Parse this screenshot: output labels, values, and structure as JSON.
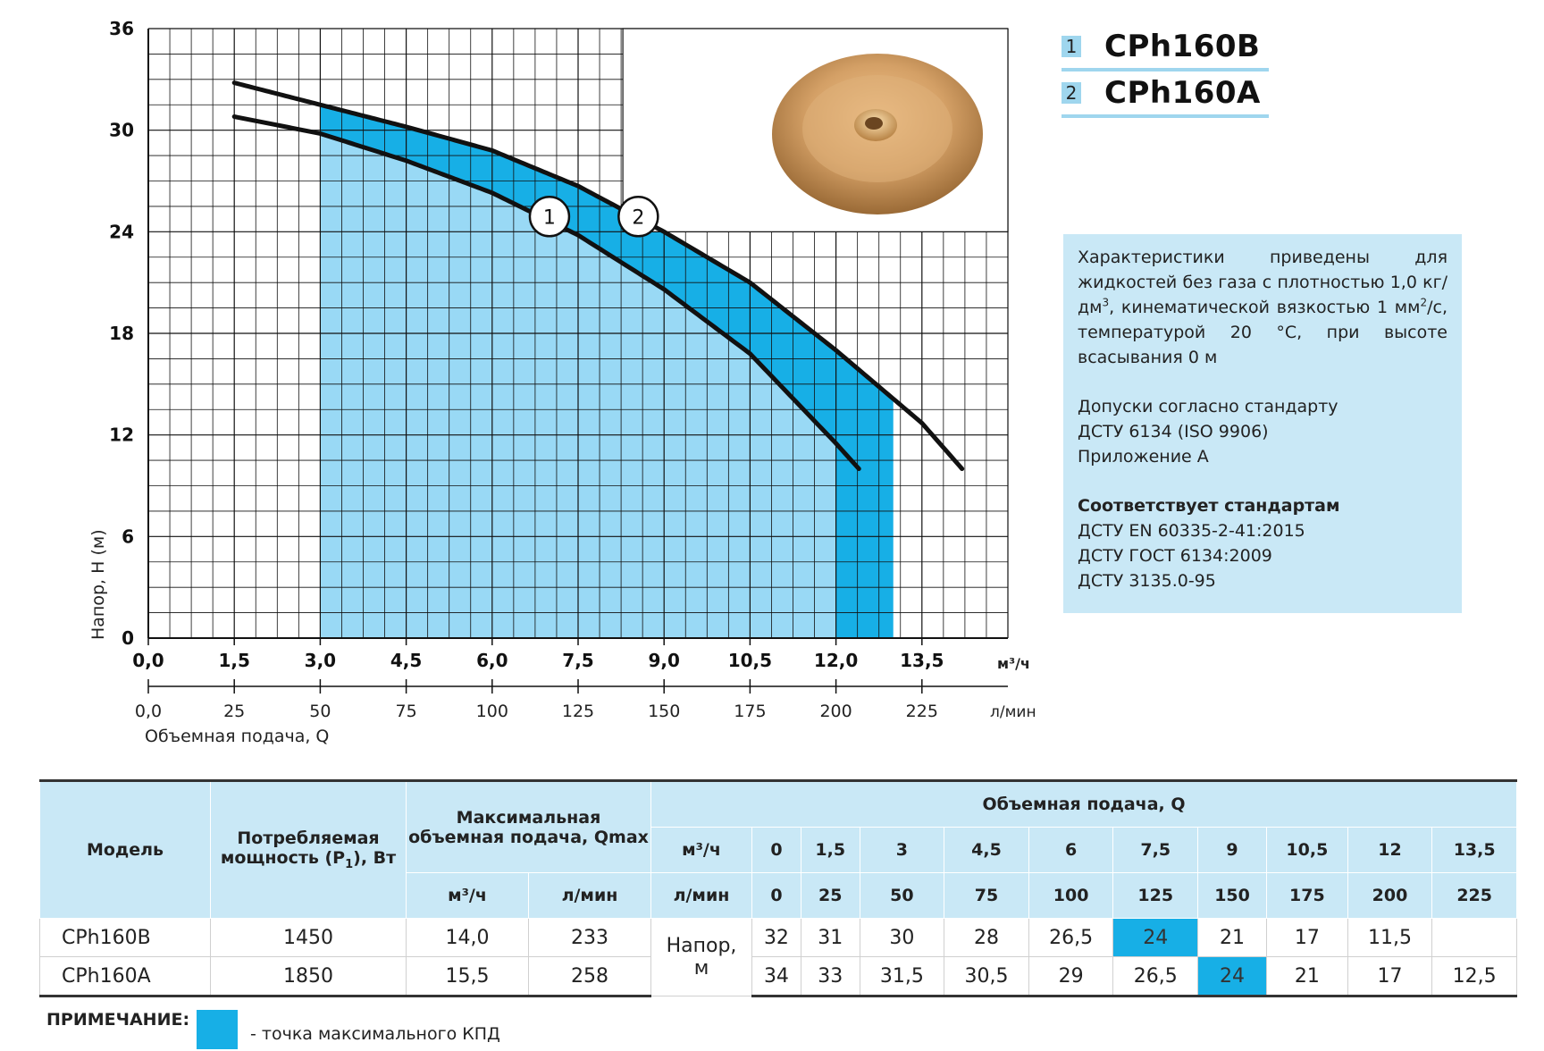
{
  "chart_data": {
    "type": "line",
    "xlabel": "Объемная подача, Q",
    "ylabel": "Напор, Н (м)",
    "x_unit_primary": "м³/ч",
    "x_unit_secondary": "л/мин",
    "xlim": [
      0,
      15
    ],
    "ylim": [
      0,
      36
    ],
    "x_ticks_primary": [
      "0,0",
      "1,5",
      "3,0",
      "4,5",
      "6,0",
      "7,5",
      "9,0",
      "10,5",
      "12,0",
      "13,5"
    ],
    "x_ticks_secondary": [
      "0,0",
      "25",
      "50",
      "75",
      "100",
      "125",
      "150",
      "175",
      "200",
      "225"
    ],
    "y_ticks": [
      "36",
      "30",
      "24",
      "18",
      "12",
      "6",
      "0"
    ],
    "series": [
      {
        "name": "1",
        "x": [
          1.5,
          3,
          4.5,
          6,
          7.5,
          9,
          10.5,
          12,
          12.4
        ],
        "y": [
          30.8,
          29.8,
          28.2,
          26.3,
          23.8,
          20.6,
          16.8,
          11.5,
          10
        ]
      },
      {
        "name": "2",
        "x": [
          1.5,
          3,
          4.5,
          6,
          7.5,
          9,
          10.5,
          12,
          13.5,
          14.2
        ],
        "y": [
          32.8,
          31.5,
          30.2,
          28.8,
          26.7,
          24,
          21,
          17,
          12.7,
          10
        ]
      }
    ],
    "working_range": {
      "x_from": 3.0,
      "x_to": 13.0
    },
    "curve_labels": [
      {
        "label": "1",
        "x": 7.0,
        "y": 24.9
      },
      {
        "label": "2",
        "x": 8.55,
        "y": 24.9
      }
    ],
    "grid": true
  },
  "legend": {
    "items": [
      {
        "num": "1",
        "name": "CPh160B"
      },
      {
        "num": "2",
        "name": "CPh160A"
      }
    ]
  },
  "info": {
    "p1": "Характеристики приведены для жидкостей без газа с плотностью 1,0 кг/дм",
    "p1_sup": "3",
    "p1b": ", кинематической вязкостью 1 мм",
    "p1b_sup": "2",
    "p1c": "/с, температурой 20 °С, при высоте всасывания 0 м",
    "p2_l1": "Допуски согласно стандарту",
    "p2_l2": "ДСТУ 6134 (ISO 9906)",
    "p2_l3": "Приложение А",
    "p3_title": "Соответствует стандартам",
    "p3_l1": "ДСТУ EN 60335-2-41:2015",
    "p3_l2": "ДСТУ ГОСТ 6134:2009",
    "p3_l3": "ДСТУ 3135.0-95"
  },
  "table": {
    "h_model": "Модель",
    "h_power": "Потребляемая мощность (P",
    "h_power_sub": "1",
    "h_power_end": "), Вт",
    "h_qmax": "Максимальная объемная подача, Qmax",
    "h_flow": "Объемная подача, Q",
    "u_m3": "м³/ч",
    "u_lmin": "л/мин",
    "q_m3": [
      "0",
      "1,5",
      "3",
      "4,5",
      "6",
      "7,5",
      "9",
      "10,5",
      "12",
      "13,5"
    ],
    "q_lmin": [
      "0",
      "25",
      "50",
      "75",
      "100",
      "125",
      "150",
      "175",
      "200",
      "225"
    ],
    "head_label_1": "Напор,",
    "head_label_2": "м",
    "rows": [
      {
        "model": "CPh160B",
        "power": "1450",
        "qmax_m3": "14,0",
        "qmax_lmin": "233",
        "heads": [
          "32",
          "31",
          "30",
          "28",
          "26,5",
          "24",
          "21",
          "17",
          "11,5",
          ""
        ],
        "hl": 5
      },
      {
        "model": "CPh160A",
        "power": "1850",
        "qmax_m3": "15,5",
        "qmax_lmin": "258",
        "heads": [
          "34",
          "33",
          "31,5",
          "30,5",
          "29",
          "26,5",
          "24",
          "21",
          "17",
          "12,5"
        ],
        "hl": 6
      }
    ]
  },
  "note": {
    "label": "ПРИМЕЧАНИЕ:",
    "text": "- точка максимального КПД"
  },
  "colors": {
    "band": "#17afe6",
    "band_light": "#99d9f5",
    "info_bg": "#c9e8f6",
    "curve": "#111111"
  }
}
